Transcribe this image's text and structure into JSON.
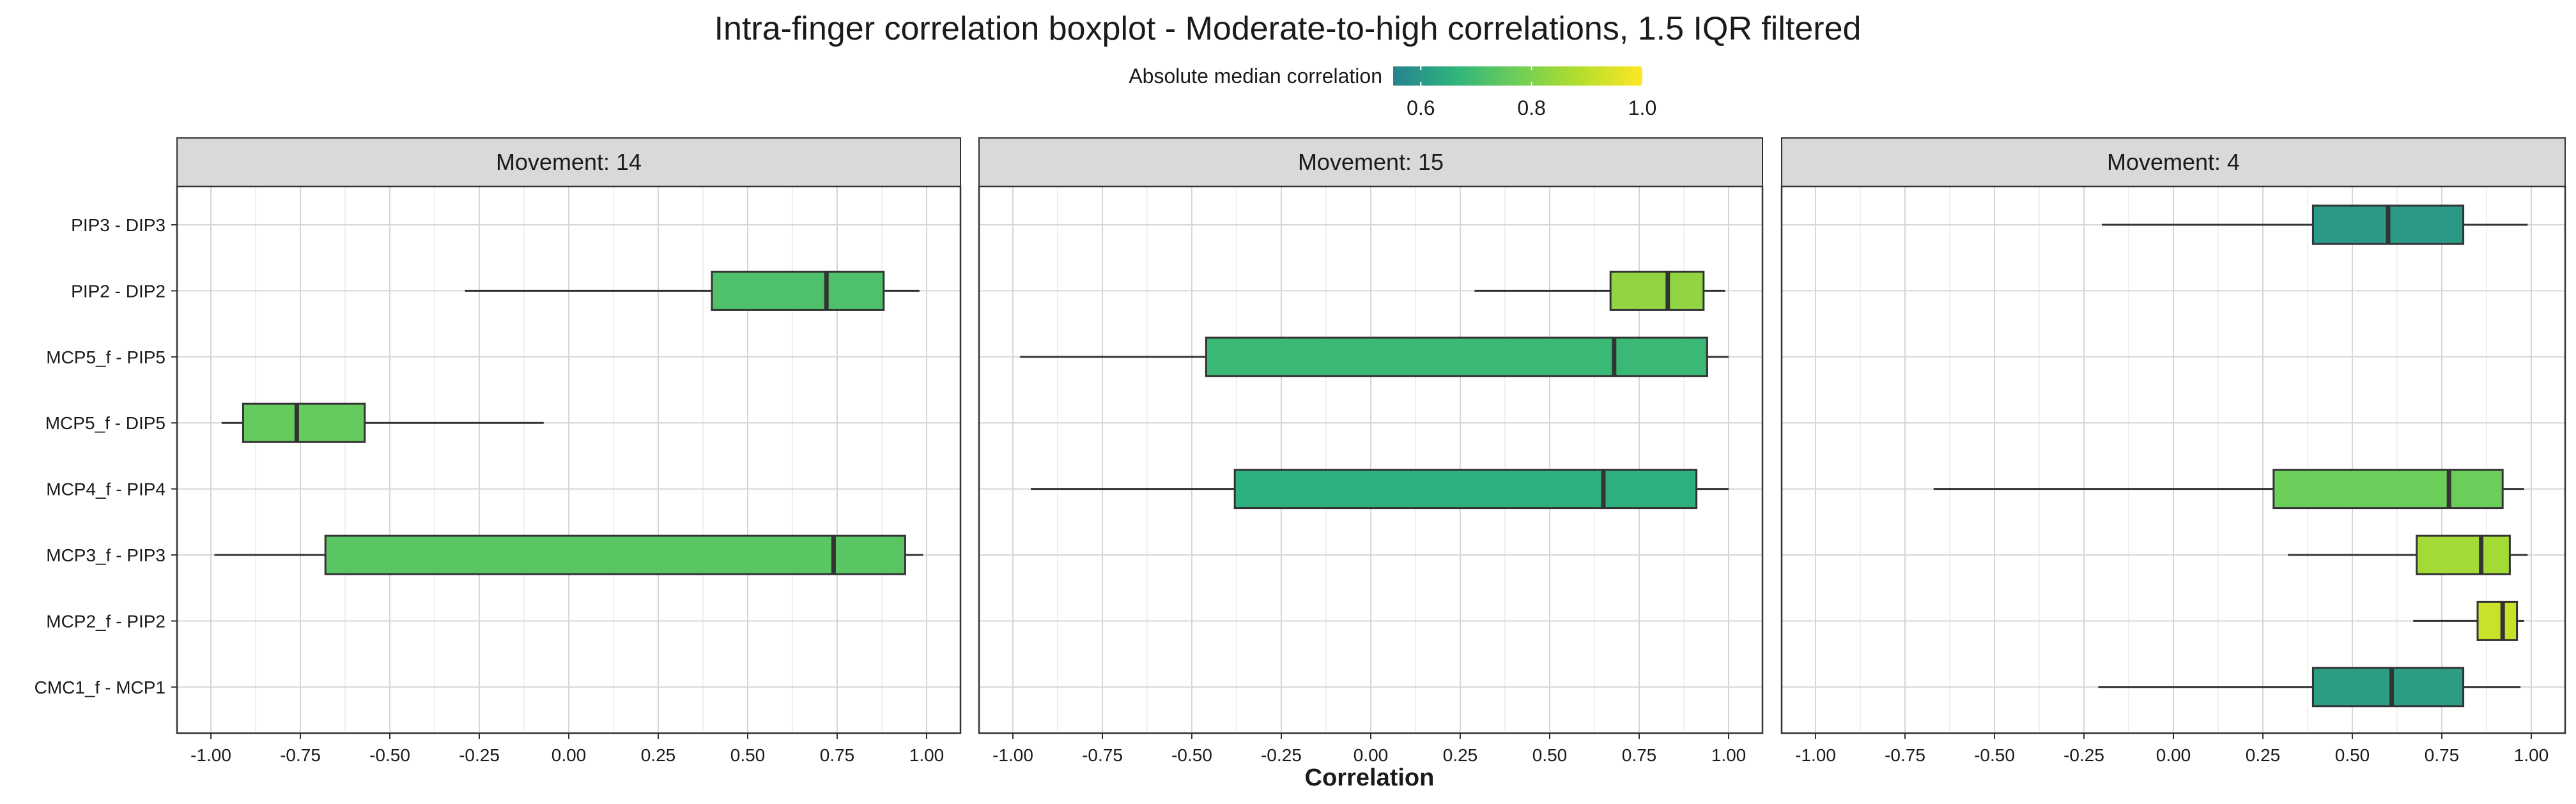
{
  "chart_data": {
    "type": "boxplot",
    "title": "Intra-finger correlation boxplot - Moderate-to-high correlations, 1.5 IQR filtered",
    "xlabel": "Correlation",
    "ylabel": "",
    "xlim": [
      -1.0,
      1.0
    ],
    "x_ticks": [
      "-1.00",
      "-0.75",
      "-0.50",
      "-0.25",
      "0.00",
      "0.25",
      "0.50",
      "0.75",
      "1.00"
    ],
    "categories": [
      "PIP3 - DIP3",
      "PIP2 - DIP2",
      "MCP5_f - PIP5",
      "MCP5_f - DIP5",
      "MCP4_f - PIP4",
      "MCP3_f - PIP3",
      "MCP2_f - PIP2",
      "CMC1_f - MCP1"
    ],
    "legend": {
      "title": "Absolute median correlation",
      "position": "top",
      "range": [
        0.55,
        1.0
      ],
      "ticks": [
        "0.6",
        "0.8",
        "1.0"
      ],
      "colors": [
        "#26838e",
        "#2fb47c",
        "#6ece58",
        "#b5de2b",
        "#fde725"
      ]
    },
    "grid": true,
    "panels": [
      {
        "label": "Movement: 14",
        "boxes": [
          {
            "category": "PIP2 - DIP2",
            "lower_whisker": -0.29,
            "q1": 0.4,
            "median": 0.72,
            "q3": 0.88,
            "upper_whisker": 0.98,
            "abs_median": 0.72
          },
          {
            "category": "MCP5_f - DIP5",
            "lower_whisker": -0.97,
            "q1": -0.91,
            "median": -0.76,
            "q3": -0.57,
            "upper_whisker": -0.07,
            "abs_median": 0.76
          },
          {
            "category": "MCP3_f - PIP3",
            "lower_whisker": -0.99,
            "q1": -0.68,
            "median": 0.74,
            "q3": 0.94,
            "upper_whisker": 0.99,
            "abs_median": 0.74
          }
        ]
      },
      {
        "label": "Movement: 15",
        "boxes": [
          {
            "category": "PIP2 - DIP2",
            "lower_whisker": 0.29,
            "q1": 0.67,
            "median": 0.83,
            "q3": 0.93,
            "upper_whisker": 0.99,
            "abs_median": 0.83
          },
          {
            "category": "MCP5_f - PIP5",
            "lower_whisker": -0.98,
            "q1": -0.46,
            "median": 0.68,
            "q3": 0.94,
            "upper_whisker": 1.0,
            "abs_median": 0.68
          },
          {
            "category": "MCP4_f - PIP4",
            "lower_whisker": -0.95,
            "q1": -0.38,
            "median": 0.65,
            "q3": 0.91,
            "upper_whisker": 1.0,
            "abs_median": 0.65
          }
        ]
      },
      {
        "label": "Movement: 4",
        "boxes": [
          {
            "category": "PIP3 - DIP3",
            "lower_whisker": -0.2,
            "q1": 0.39,
            "median": 0.6,
            "q3": 0.81,
            "upper_whisker": 0.99,
            "abs_median": 0.6
          },
          {
            "category": "MCP4_f - PIP4",
            "lower_whisker": -0.67,
            "q1": 0.28,
            "median": 0.77,
            "q3": 0.92,
            "upper_whisker": 0.98,
            "abs_median": 0.77
          },
          {
            "category": "MCP3_f - PIP3",
            "lower_whisker": 0.32,
            "q1": 0.68,
            "median": 0.86,
            "q3": 0.94,
            "upper_whisker": 0.99,
            "abs_median": 0.86
          },
          {
            "category": "MCP2_f - PIP2",
            "lower_whisker": 0.67,
            "q1": 0.85,
            "median": 0.92,
            "q3": 0.96,
            "upper_whisker": 0.98,
            "abs_median": 0.92
          },
          {
            "category": "CMC1_f - MCP1",
            "lower_whisker": -0.21,
            "q1": 0.39,
            "median": 0.61,
            "q3": 0.81,
            "upper_whisker": 0.97,
            "abs_median": 0.61
          }
        ]
      }
    ]
  }
}
